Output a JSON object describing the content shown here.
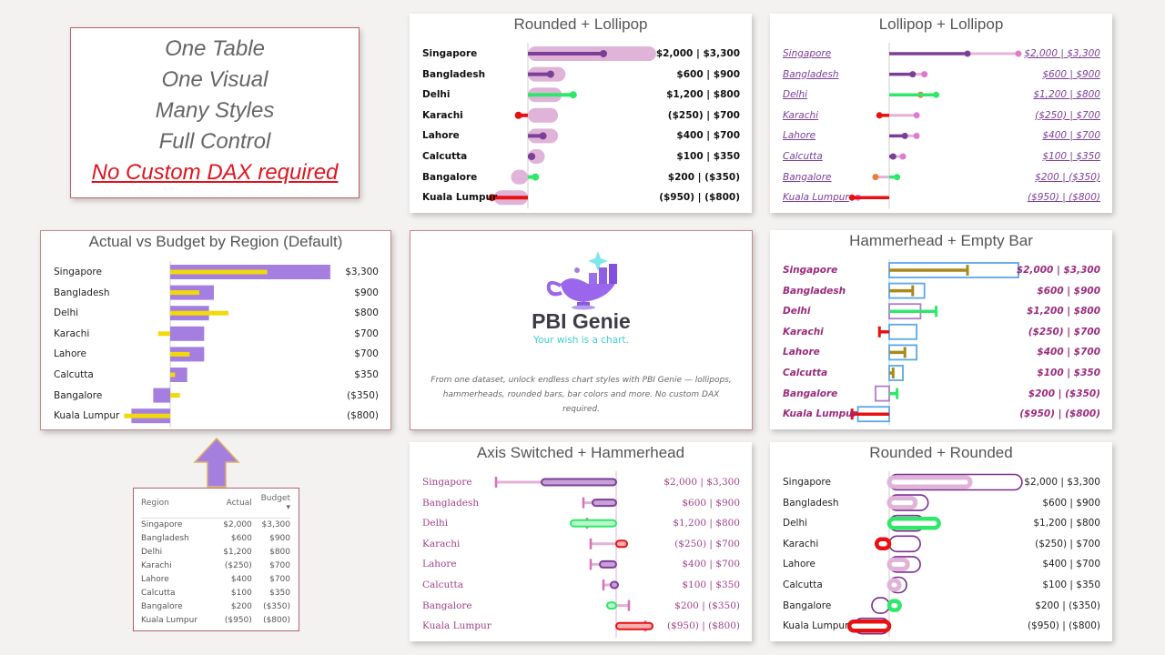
{
  "intro": {
    "lines": [
      "One Table",
      "One Visual",
      "Many Styles",
      "Full Control"
    ],
    "highlight": "No Custom DAX required"
  },
  "dataset": {
    "regions": [
      "Singapore",
      "Bangladesh",
      "Delhi",
      "Karachi",
      "Lahore",
      "Calcutta",
      "Bangalore",
      "Kuala Lumpur"
    ],
    "actual": [
      2000,
      600,
      1200,
      -250,
      400,
      100,
      200,
      -950
    ],
    "budget": [
      3300,
      900,
      800,
      700,
      700,
      350,
      -350,
      -800
    ],
    "actual_labels": [
      "$2,000",
      "$600",
      "$1,200",
      "($250)",
      "$400",
      "$100",
      "$200",
      "($950)"
    ],
    "budget_labels": [
      "$3,300",
      "$900",
      "$800",
      "$700",
      "$700",
      "$350",
      "($350)",
      "($800)"
    ]
  },
  "table": {
    "headers": [
      "Region",
      "Actual",
      "Budget"
    ],
    "sort_indicator": "▾"
  },
  "colors": {
    "actual": "#7b3f98",
    "budget": "#e0b4d8",
    "over_budget": "#2ee86a",
    "negative": "#e81010",
    "default_budget": "#a57fe0",
    "default_actual": "#f2d90a",
    "hammer": "#a8891a",
    "empty_bar": "#5aa8e8"
  },
  "genie": {
    "title": "PBI Genie",
    "tagline": "Your wish is a chart.",
    "description": "From one dataset, unlock endless chart styles with PBI Genie — lollipops, hammerheads, rounded bars, bar colors and more. No custom DAX required."
  },
  "charts": {
    "default": {
      "title": "Actual vs Budget by Region (Default)"
    },
    "rounded_lollipop": {
      "title": "Rounded + Lollipop"
    },
    "lollipop_lollipop": {
      "title": "Lollipop + Lollipop"
    },
    "hammerhead_empty": {
      "title": "Hammerhead + Empty Bar"
    },
    "axis_switched": {
      "title": "Axis Switched + Hammerhead"
    },
    "rounded_rounded": {
      "title": "Rounded + Rounded"
    }
  },
  "chart_data": [
    {
      "type": "bar",
      "title": "Actual vs Budget by Region (Default)",
      "categories": [
        "Singapore",
        "Bangladesh",
        "Delhi",
        "Karachi",
        "Lahore",
        "Calcutta",
        "Bangalore",
        "Kuala Lumpur"
      ],
      "series": [
        {
          "values": [
            2000,
            600,
            1200,
            -250,
            400,
            100,
            200,
            -950
          ]
        },
        {
          "values": [
            3300,
            900,
            800,
            700,
            700,
            350,
            -350,
            -800
          ]
        }
      ]
    }
  ]
}
